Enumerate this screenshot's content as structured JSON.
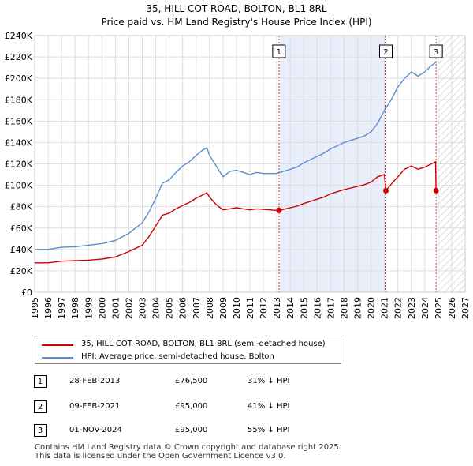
{
  "colors": {
    "price": "#cc0000",
    "hpi": "#5b8fcc",
    "shade": "#e8eefa",
    "grid": "#dddddd",
    "vline": "#cc4444"
  },
  "chart_data": {
    "type": "line",
    "title": "35, HILL COT ROAD, BOLTON, BL1 8RL",
    "subtitle": "Price paid vs. HM Land Registry's House Price Index (HPI)",
    "xlim": [
      1995,
      2027
    ],
    "ylim": [
      0,
      240000
    ],
    "x_ticks": [
      1995,
      1996,
      1997,
      1998,
      1999,
      2000,
      2001,
      2002,
      2003,
      2004,
      2005,
      2006,
      2007,
      2008,
      2009,
      2010,
      2011,
      2012,
      2013,
      2014,
      2015,
      2016,
      2017,
      2018,
      2019,
      2020,
      2021,
      2022,
      2023,
      2024,
      2025,
      2026,
      2027
    ],
    "y_ticks": [
      {
        "value": 0,
        "label": "£0"
      },
      {
        "value": 20000,
        "label": "£20K"
      },
      {
        "value": 40000,
        "label": "£40K"
      },
      {
        "value": 60000,
        "label": "£60K"
      },
      {
        "value": 80000,
        "label": "£80K"
      },
      {
        "value": 100000,
        "label": "£100K"
      },
      {
        "value": 120000,
        "label": "£120K"
      },
      {
        "value": 140000,
        "label": "£140K"
      },
      {
        "value": 160000,
        "label": "£160K"
      },
      {
        "value": 180000,
        "label": "£180K"
      },
      {
        "value": 200000,
        "label": "£200K"
      },
      {
        "value": 220000,
        "label": "£220K"
      },
      {
        "value": 240000,
        "label": "£240K"
      }
    ],
    "shaded_range": [
      2013.16,
      2021.11
    ],
    "hatched_from": 2025.0,
    "series": [
      {
        "name": "HPI: Average price, semi-detached house, Bolton",
        "x": [
          1995.0,
          1996.0,
          1997.0,
          1998.0,
          1999.0,
          2000.0,
          2001.0,
          2002.0,
          2003.0,
          2003.5,
          2004.0,
          2004.5,
          2005.0,
          2005.5,
          2006.0,
          2006.5,
          2007.0,
          2007.5,
          2007.8,
          2008.0,
          2008.5,
          2009.0,
          2009.5,
          2010.0,
          2010.5,
          2011.0,
          2011.5,
          2012.0,
          2012.5,
          2013.0,
          2013.5,
          2014.0,
          2014.5,
          2015.0,
          2015.5,
          2016.0,
          2016.5,
          2017.0,
          2017.5,
          2018.0,
          2018.5,
          2019.0,
          2019.5,
          2020.0,
          2020.5,
          2021.0,
          2021.5,
          2022.0,
          2022.5,
          2023.0,
          2023.5,
          2024.0,
          2024.5,
          2024.84
        ],
        "values": [
          40000,
          40000,
          42000,
          42500,
          44000,
          45500,
          48500,
          55000,
          65000,
          75000,
          88000,
          102000,
          105000,
          112000,
          118000,
          122000,
          128000,
          133000,
          135000,
          128000,
          118000,
          108000,
          113000,
          114000,
          112000,
          110000,
          112000,
          111000,
          111000,
          111000,
          113000,
          115000,
          117000,
          121000,
          124000,
          127000,
          130000,
          134000,
          137000,
          140000,
          142000,
          144000,
          146000,
          150000,
          158000,
          170000,
          180000,
          192000,
          200000,
          206000,
          202000,
          206000,
          212000,
          215000
        ]
      },
      {
        "name": "35, HILL COT ROAD, BOLTON, BL1 8RL (semi-detached house)",
        "x": [
          1995.0,
          1996.0,
          1997.0,
          1998.0,
          1999.0,
          2000.0,
          2001.0,
          2002.0,
          2003.0,
          2003.5,
          2004.0,
          2004.5,
          2005.0,
          2005.5,
          2006.0,
          2006.5,
          2007.0,
          2007.5,
          2007.8,
          2008.0,
          2008.5,
          2009.0,
          2009.5,
          2010.0,
          2010.5,
          2011.0,
          2011.5,
          2012.0,
          2012.5,
          2013.0,
          2013.16,
          2013.5,
          2014.0,
          2014.5,
          2015.0,
          2015.5,
          2016.0,
          2016.5,
          2017.0,
          2017.5,
          2018.0,
          2018.5,
          2019.0,
          2019.5,
          2020.0,
          2020.5,
          2021.0,
          2021.11,
          2021.5,
          2022.0,
          2022.5,
          2023.0,
          2023.5,
          2024.0,
          2024.5,
          2024.8,
          2024.84
        ],
        "values": [
          27500,
          27500,
          29000,
          29500,
          30000,
          31000,
          33000,
          38000,
          44000,
          52000,
          62000,
          72000,
          74000,
          78000,
          81000,
          84000,
          88000,
          91000,
          93000,
          89000,
          82000,
          77000,
          78000,
          79000,
          78000,
          77000,
          78000,
          77500,
          77000,
          76500,
          76500,
          77500,
          79000,
          80500,
          83000,
          85000,
          87000,
          89000,
          92000,
          94000,
          96000,
          97500,
          99000,
          100500,
          103000,
          108000,
          110000,
          95000,
          101000,
          108000,
          115000,
          118000,
          115000,
          117000,
          120000,
          122000,
          95000
        ]
      }
    ],
    "sales": [
      {
        "label": "1",
        "x": 2013.16,
        "value": 76500
      },
      {
        "label": "2",
        "x": 2021.11,
        "value": 95000
      },
      {
        "label": "3",
        "x": 2024.84,
        "value": 95000
      }
    ]
  },
  "legend": {
    "price_label": "35, HILL COT ROAD, BOLTON, BL1 8RL (semi-detached house)",
    "hpi_label": "HPI: Average price, semi-detached house, Bolton"
  },
  "table": [
    {
      "num": "1",
      "date": "28-FEB-2013",
      "price": "£76,500",
      "hpi": "31% ↓ HPI"
    },
    {
      "num": "2",
      "date": "09-FEB-2021",
      "price": "£95,000",
      "hpi": "41% ↓ HPI"
    },
    {
      "num": "3",
      "date": "01-NOV-2024",
      "price": "£95,000",
      "hpi": "55% ↓ HPI"
    }
  ],
  "footer": {
    "line1": "Contains HM Land Registry data © Crown copyright and database right 2025.",
    "line2": "This data is licensed under the Open Government Licence v3.0."
  }
}
